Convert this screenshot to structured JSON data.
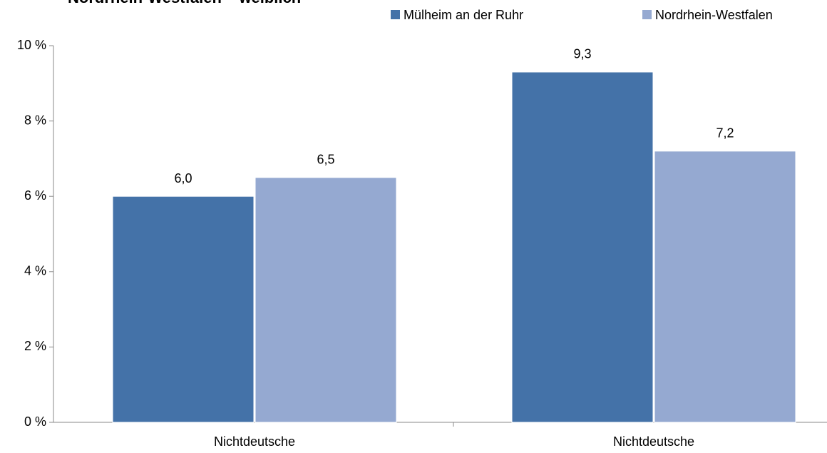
{
  "chart_data": {
    "type": "bar",
    "title": "Nordrhein-Westfalen – weiblich",
    "categories": [
      "Nichtdeutsche",
      "Nichtdeutsche"
    ],
    "series": [
      {
        "name": "Mülheim an der Ruhr",
        "color": "#4472a8",
        "values": [
          6.0,
          9.3
        ],
        "value_labels": [
          "6,0",
          "9,3"
        ]
      },
      {
        "name": "Nordrhein-Westfalen",
        "color": "#95a9d1",
        "values": [
          6.5,
          7.2
        ],
        "value_labels": [
          "6,5",
          "7,2"
        ]
      }
    ],
    "ylim": [
      0,
      10
    ],
    "yticks": [
      {
        "value": 0,
        "label": "0 %"
      },
      {
        "value": 2,
        "label": "2 %"
      },
      {
        "value": 4,
        "label": "4 %"
      },
      {
        "value": 6,
        "label": "6 %"
      },
      {
        "value": 8,
        "label": "8 %"
      },
      {
        "value": 10,
        "label": "10 %"
      }
    ],
    "grid": false,
    "legend": "top"
  }
}
